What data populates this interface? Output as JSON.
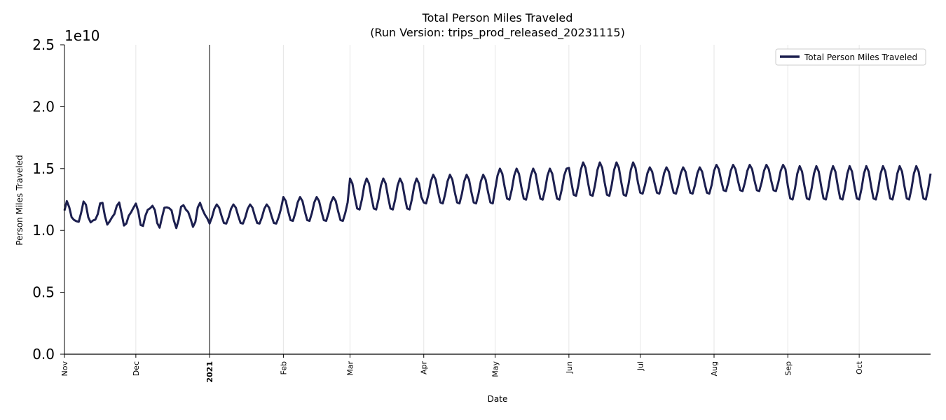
{
  "chart_data": {
    "type": "line",
    "title": "Total Person Miles Traveled",
    "subtitle": "(Run Version: trips_prod_released_20231115)",
    "xlabel": "Date",
    "ylabel": "Person Miles Traveled",
    "y_offset_label": "1e10",
    "ylim": [
      0,
      2.5
    ],
    "y_ticks": [
      "0.0",
      "0.5",
      "1.0",
      "1.5",
      "2.0",
      "2.5"
    ],
    "y_tick_values": [
      0,
      0.5,
      1.0,
      1.5,
      2.0,
      2.5
    ],
    "x_start": "2020-11-01",
    "x_end": "2021-10-31",
    "x_ticks": [
      {
        "label": "Nov",
        "date": "2020-11-01",
        "bold": false
      },
      {
        "label": "Dec",
        "date": "2020-12-01",
        "bold": false
      },
      {
        "label": "2021",
        "date": "2021-01-01",
        "bold": true
      },
      {
        "label": "Feb",
        "date": "2021-02-01",
        "bold": false
      },
      {
        "label": "Mar",
        "date": "2021-03-01",
        "bold": false
      },
      {
        "label": "Apr",
        "date": "2021-04-01",
        "bold": false
      },
      {
        "label": "May",
        "date": "2021-05-01",
        "bold": false
      },
      {
        "label": "Jun",
        "date": "2021-06-01",
        "bold": false
      },
      {
        "label": "Jul",
        "date": "2021-07-01",
        "bold": false
      },
      {
        "label": "Aug",
        "date": "2021-08-01",
        "bold": false
      },
      {
        "label": "Sep",
        "date": "2021-09-01",
        "bold": false
      },
      {
        "label": "Oct",
        "date": "2021-10-01",
        "bold": false
      }
    ],
    "grid": "vertical",
    "vertical_marker_date": "2021-01-01",
    "legend_position": "top-right",
    "series": [
      {
        "name": "Total Person Miles Traveled",
        "color": "#1c1f4f",
        "segments": [
          {
            "start": "2020-11-01",
            "end": "2020-12-31",
            "base": 1.13,
            "amp": 0.09,
            "note": "irregular pre-2021 weekly cycle"
          },
          {
            "start": "2021-01-01",
            "end": "2021-01-31",
            "base": 1.13,
            "amp": 0.08
          },
          {
            "start": "2021-02-01",
            "end": "2021-02-28",
            "base": 1.17,
            "amp": 0.1
          },
          {
            "start": "2021-03-01",
            "end": "2021-03-31",
            "base": 1.29,
            "amp": 0.13
          },
          {
            "start": "2021-04-01",
            "end": "2021-04-30",
            "base": 1.33,
            "amp": 0.12
          },
          {
            "start": "2021-05-01",
            "end": "2021-05-31",
            "base": 1.37,
            "amp": 0.13
          },
          {
            "start": "2021-06-01",
            "end": "2021-06-30",
            "base": 1.41,
            "amp": 0.14
          },
          {
            "start": "2021-07-01",
            "end": "2021-07-31",
            "base": 1.4,
            "amp": 0.11
          },
          {
            "start": "2021-08-01",
            "end": "2021-08-31",
            "base": 1.42,
            "amp": 0.11
          },
          {
            "start": "2021-09-01",
            "end": "2021-09-30",
            "base": 1.38,
            "amp": 0.14
          },
          {
            "start": "2021-10-01",
            "end": "2021-10-31",
            "base": 1.38,
            "amp": 0.14
          }
        ]
      }
    ]
  },
  "colors": {
    "line": "#1c1f4f",
    "grid": "#e6e6e6",
    "axis": "#000000",
    "marker": "#000000"
  }
}
